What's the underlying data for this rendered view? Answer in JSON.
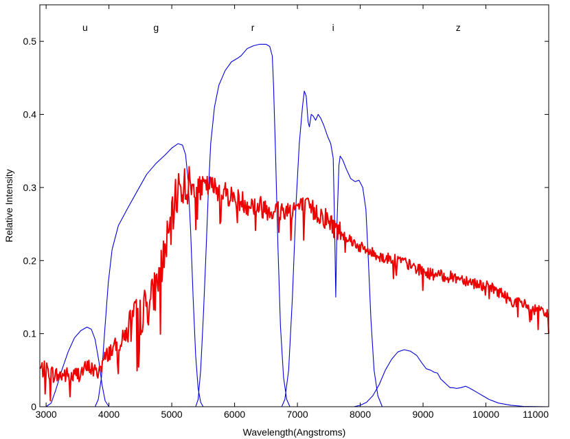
{
  "chart_data": {
    "type": "line",
    "title": "",
    "xlabel": "Wavelength(Angstroms)",
    "ylabel": "Relative Intensity",
    "xlim": [
      2900,
      11000
    ],
    "ylim": [
      0,
      0.55
    ],
    "x_ticks": [
      3000,
      4000,
      5000,
      6000,
      7000,
      8000,
      9000,
      10000,
      11000
    ],
    "y_ticks": [
      0,
      0.1,
      0.2,
      0.3,
      0.4,
      0.5
    ],
    "grid": false,
    "legend": "none",
    "band_labels": [
      {
        "text": "u",
        "x": 3620
      },
      {
        "text": "g",
        "x": 4750
      },
      {
        "text": "r",
        "x": 6290
      },
      {
        "text": "i",
        "x": 7570
      },
      {
        "text": "z",
        "x": 9560
      }
    ],
    "series": [
      {
        "color": "#0000dd",
        "points": [
          [
            3000,
            0
          ],
          [
            3080,
            0.005
          ],
          [
            3150,
            0.022
          ],
          [
            3250,
            0.05
          ],
          [
            3350,
            0.075
          ],
          [
            3450,
            0.094
          ],
          [
            3550,
            0.104
          ],
          [
            3650,
            0.109
          ],
          [
            3720,
            0.106
          ],
          [
            3780,
            0.092
          ],
          [
            3840,
            0.062
          ],
          [
            3890,
            0.03
          ],
          [
            3940,
            0.008
          ],
          [
            4000,
            0
          ]
        ]
      },
      {
        "color": "#0000dd",
        "points": [
          [
            3780,
            0
          ],
          [
            3830,
            0.01
          ],
          [
            3880,
            0.04
          ],
          [
            3930,
            0.1
          ],
          [
            3990,
            0.17
          ],
          [
            4050,
            0.215
          ],
          [
            4150,
            0.248
          ],
          [
            4300,
            0.272
          ],
          [
            4450,
            0.295
          ],
          [
            4600,
            0.318
          ],
          [
            4750,
            0.333
          ],
          [
            4900,
            0.345
          ],
          [
            5000,
            0.354
          ],
          [
            5100,
            0.36
          ],
          [
            5170,
            0.358
          ],
          [
            5220,
            0.345
          ],
          [
            5260,
            0.31
          ],
          [
            5300,
            0.24
          ],
          [
            5340,
            0.15
          ],
          [
            5380,
            0.07
          ],
          [
            5420,
            0.025
          ],
          [
            5460,
            0.006
          ],
          [
            5500,
            0
          ]
        ]
      },
      {
        "color": "#0000dd",
        "points": [
          [
            5380,
            0
          ],
          [
            5420,
            0.01
          ],
          [
            5460,
            0.05
          ],
          [
            5500,
            0.12
          ],
          [
            5540,
            0.2
          ],
          [
            5580,
            0.29
          ],
          [
            5620,
            0.36
          ],
          [
            5680,
            0.41
          ],
          [
            5750,
            0.44
          ],
          [
            5850,
            0.46
          ],
          [
            5950,
            0.472
          ],
          [
            6050,
            0.477
          ],
          [
            6100,
            0.48
          ],
          [
            6200,
            0.49
          ],
          [
            6300,
            0.494
          ],
          [
            6400,
            0.496
          ],
          [
            6500,
            0.496
          ],
          [
            6560,
            0.493
          ],
          [
            6600,
            0.48
          ],
          [
            6620,
            0.44
          ],
          [
            6650,
            0.35
          ],
          [
            6690,
            0.22
          ],
          [
            6730,
            0.11
          ],
          [
            6780,
            0.04
          ],
          [
            6830,
            0.01
          ],
          [
            6880,
            0
          ]
        ]
      },
      {
        "color": "#0000dd",
        "points": [
          [
            6750,
            0
          ],
          [
            6800,
            0.01
          ],
          [
            6860,
            0.05
          ],
          [
            6920,
            0.15
          ],
          [
            6980,
            0.28
          ],
          [
            7030,
            0.36
          ],
          [
            7080,
            0.41
          ],
          [
            7110,
            0.432
          ],
          [
            7140,
            0.425
          ],
          [
            7170,
            0.39
          ],
          [
            7190,
            0.383
          ],
          [
            7220,
            0.4
          ],
          [
            7250,
            0.398
          ],
          [
            7290,
            0.392
          ],
          [
            7330,
            0.4
          ],
          [
            7370,
            0.395
          ],
          [
            7420,
            0.385
          ],
          [
            7480,
            0.37
          ],
          [
            7530,
            0.36
          ],
          [
            7570,
            0.34
          ],
          [
            7590,
            0.26
          ],
          [
            7610,
            0.15
          ],
          [
            7630,
            0.25
          ],
          [
            7660,
            0.33
          ],
          [
            7680,
            0.343
          ],
          [
            7720,
            0.338
          ],
          [
            7780,
            0.325
          ],
          [
            7850,
            0.312
          ],
          [
            7920,
            0.308
          ],
          [
            7980,
            0.31
          ],
          [
            8040,
            0.3
          ],
          [
            8090,
            0.27
          ],
          [
            8130,
            0.2
          ],
          [
            8170,
            0.12
          ],
          [
            8220,
            0.05
          ],
          [
            8280,
            0.015
          ],
          [
            8350,
            0
          ]
        ]
      },
      {
        "color": "#0000dd",
        "points": [
          [
            7900,
            0
          ],
          [
            8000,
            0.002
          ],
          [
            8100,
            0.006
          ],
          [
            8200,
            0.015
          ],
          [
            8300,
            0.03
          ],
          [
            8400,
            0.05
          ],
          [
            8500,
            0.065
          ],
          [
            8600,
            0.075
          ],
          [
            8700,
            0.078
          ],
          [
            8800,
            0.076
          ],
          [
            8900,
            0.07
          ],
          [
            8980,
            0.06
          ],
          [
            9050,
            0.052
          ],
          [
            9120,
            0.05
          ],
          [
            9180,
            0.047
          ],
          [
            9230,
            0.046
          ],
          [
            9280,
            0.038
          ],
          [
            9330,
            0.034
          ],
          [
            9380,
            0.03
          ],
          [
            9430,
            0.026
          ],
          [
            9480,
            0.026
          ],
          [
            9530,
            0.025
          ],
          [
            9600,
            0.026
          ],
          [
            9680,
            0.028
          ],
          [
            9750,
            0.025
          ],
          [
            9850,
            0.02
          ],
          [
            9950,
            0.015
          ],
          [
            10050,
            0.01
          ],
          [
            10200,
            0.005
          ],
          [
            10400,
            0.002
          ],
          [
            10600,
            0.0005
          ],
          [
            11000,
            0
          ]
        ]
      },
      {
        "color": "#ee0000",
        "noise": true,
        "points": [
          [
            2900,
            0.052
          ],
          [
            3000,
            0.05
          ],
          [
            3100,
            0.045
          ],
          [
            3200,
            0.042
          ],
          [
            3300,
            0.044
          ],
          [
            3400,
            0.04
          ],
          [
            3500,
            0.045
          ],
          [
            3600,
            0.05
          ],
          [
            3700,
            0.055
          ],
          [
            3800,
            0.045
          ],
          [
            3900,
            0.06
          ],
          [
            4000,
            0.075
          ],
          [
            4100,
            0.082
          ],
          [
            4200,
            0.09
          ],
          [
            4300,
            0.105
          ],
          [
            4400,
            0.118
          ],
          [
            4500,
            0.125
          ],
          [
            4600,
            0.138
          ],
          [
            4700,
            0.15
          ],
          [
            4800,
            0.18
          ],
          [
            4900,
            0.215
          ],
          [
            5000,
            0.25
          ],
          [
            5050,
            0.28
          ],
          [
            5100,
            0.3
          ],
          [
            5200,
            0.303
          ],
          [
            5400,
            0.298
          ],
          [
            5600,
            0.302
          ],
          [
            5800,
            0.296
          ],
          [
            6000,
            0.285
          ],
          [
            6200,
            0.278
          ],
          [
            6400,
            0.274
          ],
          [
            6600,
            0.27
          ],
          [
            6800,
            0.268
          ],
          [
            7000,
            0.274
          ],
          [
            7200,
            0.27
          ],
          [
            7400,
            0.262
          ],
          [
            7600,
            0.245
          ],
          [
            7800,
            0.232
          ],
          [
            8000,
            0.218
          ],
          [
            8200,
            0.21
          ],
          [
            8400,
            0.203
          ],
          [
            8600,
            0.202
          ],
          [
            8800,
            0.193
          ],
          [
            9000,
            0.185
          ],
          [
            9200,
            0.18
          ],
          [
            9400,
            0.178
          ],
          [
            9600,
            0.176
          ],
          [
            9800,
            0.17
          ],
          [
            10000,
            0.165
          ],
          [
            10200,
            0.158
          ],
          [
            10400,
            0.145
          ],
          [
            10600,
            0.14
          ],
          [
            10800,
            0.132
          ],
          [
            11000,
            0.125
          ]
        ]
      }
    ]
  }
}
